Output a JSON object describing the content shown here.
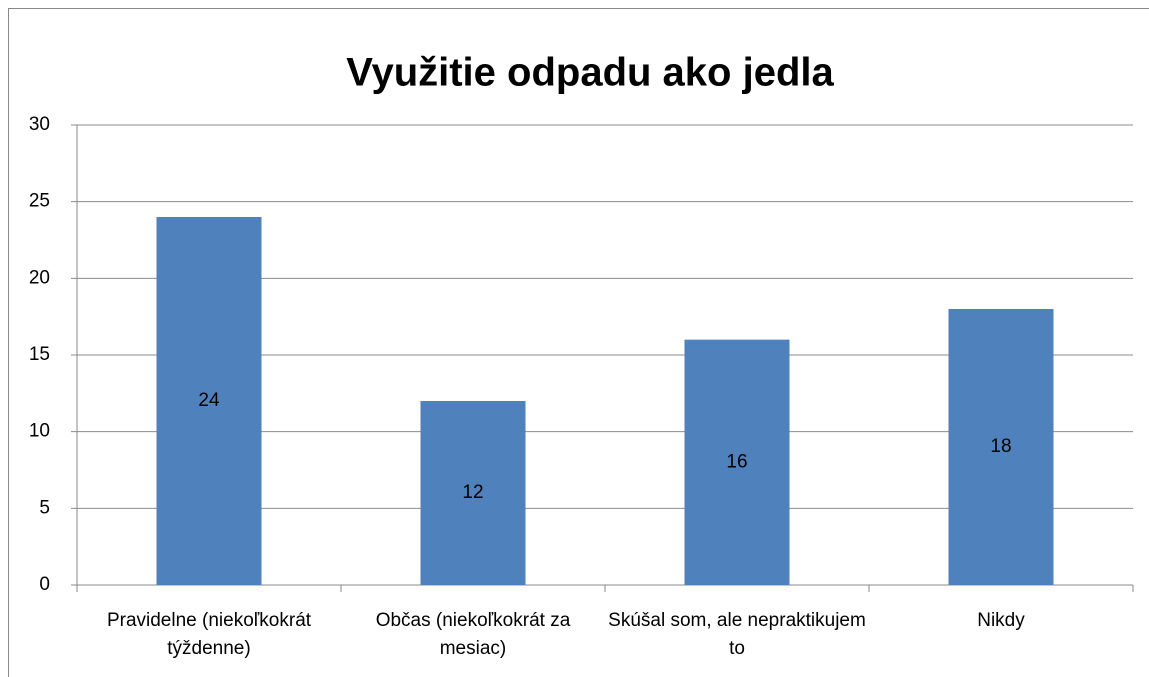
{
  "chart_data": {
    "type": "bar",
    "title": "Využitie odpadu ako jedla",
    "categories": [
      "Pravidelne (niekoľkokrát týždenne)",
      "Občas (niekoľkokrát za mesiac)",
      "Skúšal som, ale nepraktikujem to",
      "Nikdy"
    ],
    "values": [
      24,
      12,
      16,
      18
    ],
    "color": "#4f81bd",
    "ylim": [
      0,
      30
    ],
    "yticks": [
      0,
      5,
      10,
      15,
      20,
      25,
      30
    ],
    "grid": true
  }
}
